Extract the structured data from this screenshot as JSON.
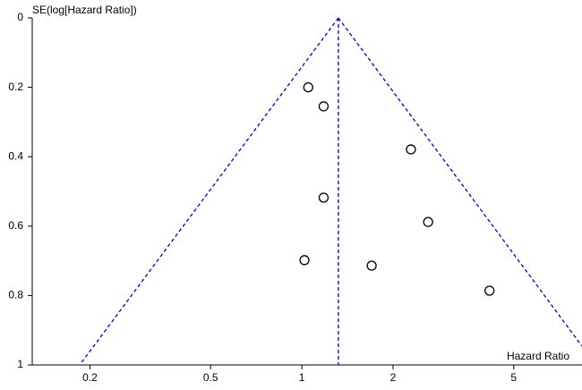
{
  "chart_data": {
    "type": "scatter",
    "y_label": "SE(log[Hazard Ratio])",
    "x_label": "Hazard Ratio",
    "x": [
      1.05,
      1.18,
      2.29,
      1.18,
      2.61,
      1.02,
      1.7,
      4.16
    ],
    "y": [
      0.2,
      0.255,
      0.379,
      0.518,
      0.588,
      0.698,
      0.714,
      0.786
    ],
    "xlim": [
      0.129,
      8.4
    ],
    "ylim": [
      0,
      1
    ],
    "xticks": [
      0.2,
      0.5,
      1,
      2,
      5
    ],
    "yticks": [
      0,
      0.2,
      0.4,
      0.6,
      0.8,
      1
    ],
    "x_log": true,
    "y_inverted": true,
    "pooled_estimate": 1.32,
    "funnel_left": {
      "x": [
        1.32,
        0.185
      ],
      "y": [
        0,
        1
      ]
    },
    "funnel_right": {
      "x": [
        1.32,
        9.34
      ],
      "y": [
        0,
        1
      ]
    },
    "line_color": "#0000cc",
    "marker_color": "#000000"
  }
}
